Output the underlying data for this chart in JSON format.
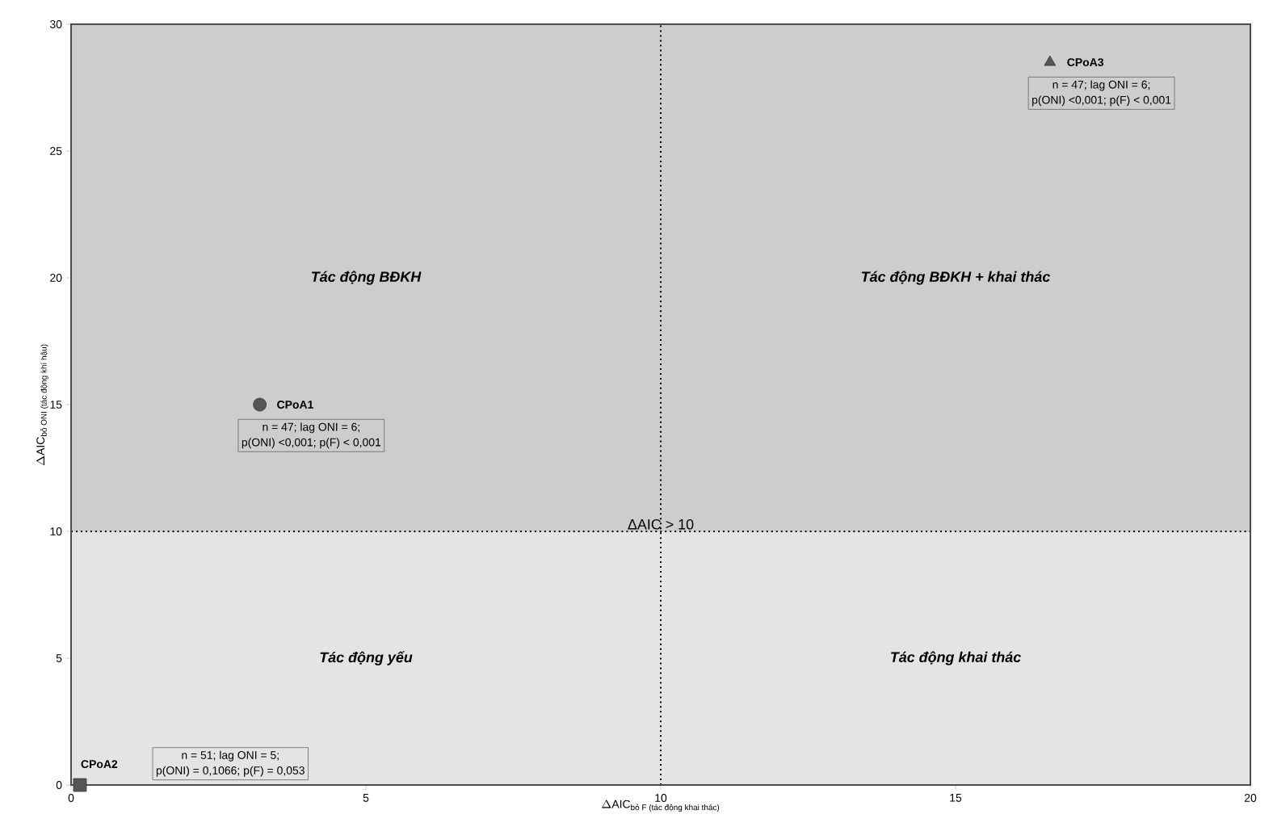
{
  "chart_data": {
    "type": "scatter",
    "xlabel": "\\Delta\\text{AIC}_{\\text{bỏ F (tác động khai thác)}}",
    "ylabel": "\\Delta\\text{AIC}_{\\text{bỏ ONI (tác động khí hậu)}}",
    "xlim": [
      0,
      20
    ],
    "ylim": [
      0,
      30
    ],
    "xticks": [
      0,
      5,
      10,
      15,
      20
    ],
    "yticks": [
      0,
      5,
      10,
      15,
      20,
      25,
      30
    ],
    "series": [
      {
        "name": "CPoA1",
        "color": "#555555",
        "marker": "circle",
        "x": [
          3.2
        ],
        "values": [
          15.0
        ]
      },
      {
        "name": "CPoA2",
        "color": "#555555",
        "marker": "square",
        "x": [
          0.15
        ],
        "values": [
          0
        ]
      },
      {
        "name": "CPoA3",
        "color": "#555555",
        "marker": "triangle",
        "x": [
          16.6
        ],
        "values": [
          28.5
        ]
      }
    ],
    "bands": [
      {
        "axis": "y",
        "from": 0,
        "to": 10,
        "color": "#e4e4e4"
      },
      {
        "axis": "y",
        "from": 10,
        "to": 30,
        "color": "#cdcdcd"
      }
    ],
    "ref_lines": [
      {
        "axis": "x",
        "value": 10,
        "line_style": "dotted"
      },
      {
        "axis": "y",
        "value": 10,
        "label": "ΔAIC > 10",
        "line_style": "dotted"
      }
    ],
    "annotations": [
      "n = 47; lag ONI = 6;",
      "p(ONI) <0,001; p(F) < 0,001",
      "n = 51; lag ONI = 5;",
      "p(ONI) = 0,1066; p(F) = 0,053",
      "n = 47; lag ONI = 6;",
      "p(ONI) <0,001; p(F) < 0,001",
      "Tác động BĐKH",
      "Tác động BĐKH + khai thác",
      "Tác động yếu",
      "Tác động khai thác"
    ],
    "grid": false
  }
}
